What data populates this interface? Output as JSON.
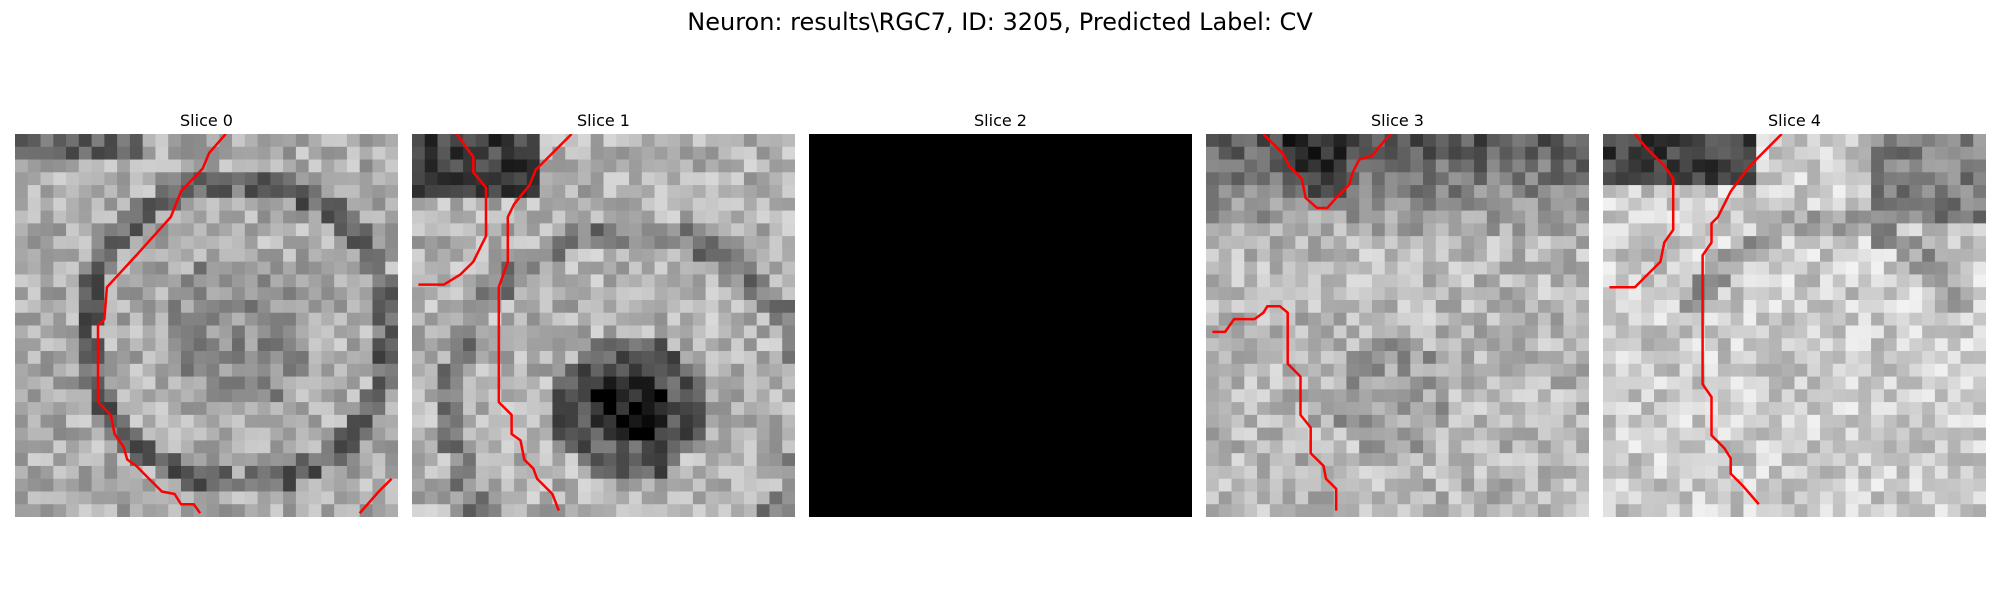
{
  "figure": {
    "title": "Neuron: results\\RGC7, ID: 3205, Predicted Label: CV"
  },
  "slices": [
    {
      "label": "Slice 0"
    },
    {
      "label": "Slice 1"
    },
    {
      "label": "Slice 2"
    },
    {
      "label": "Slice 3"
    },
    {
      "label": "Slice 4"
    }
  ],
  "colors": {
    "contour": "#ff0000",
    "background": "#ffffff"
  }
}
